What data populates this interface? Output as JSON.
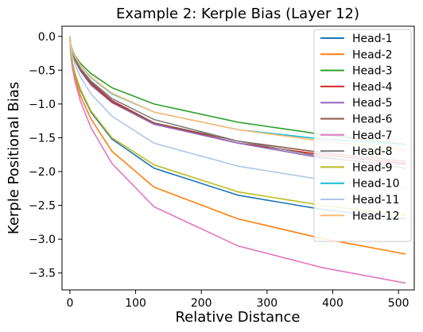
{
  "chart_data": {
    "type": "line",
    "title": "Example 2: Kerple Bias (Layer 12)",
    "xlabel": "Relative Distance",
    "ylabel": "Kerple Positional Bias",
    "xlim": [
      -12,
      524
    ],
    "ylim": [
      -3.75,
      0.15
    ],
    "xticks": [
      0,
      100,
      200,
      300,
      400,
      500
    ],
    "yticks": [
      0.0,
      -0.5,
      -1.0,
      -1.5,
      -2.0,
      -2.5,
      -3.0,
      -3.5
    ],
    "ytick_labels": [
      "0.0",
      "−0.5",
      "−1.0",
      "−1.5",
      "−2.0",
      "−2.5",
      "−3.0",
      "−3.5"
    ],
    "legend_position": "top-right",
    "grid": false,
    "x": [
      0,
      1,
      2,
      4,
      8,
      16,
      32,
      64,
      128,
      256,
      384,
      511
    ],
    "series": [
      {
        "name": "Head-1",
        "color": "#1f77b4",
        "values": [
          0,
          -0.2,
          -0.28,
          -0.4,
          -0.56,
          -0.8,
          -1.12,
          -1.52,
          -1.95,
          -2.35,
          -2.56,
          -2.7
        ]
      },
      {
        "name": "Head-2",
        "color": "#ff7f0e",
        "values": [
          0,
          -0.22,
          -0.31,
          -0.44,
          -0.62,
          -0.88,
          -1.22,
          -1.7,
          -2.23,
          -2.7,
          -2.99,
          -3.22
        ]
      },
      {
        "name": "Head-3",
        "color": "#2ca02c",
        "values": [
          0,
          -0.1,
          -0.14,
          -0.2,
          -0.29,
          -0.4,
          -0.55,
          -0.76,
          -1.0,
          -1.27,
          -1.45,
          -1.6
        ]
      },
      {
        "name": "Head-4",
        "color": "#d62728",
        "values": [
          0,
          -0.12,
          -0.17,
          -0.24,
          -0.34,
          -0.48,
          -0.68,
          -0.95,
          -1.28,
          -1.58,
          -1.75,
          -1.88
        ]
      },
      {
        "name": "Head-5",
        "color": "#9467bd",
        "values": [
          0,
          -0.13,
          -0.18,
          -0.26,
          -0.36,
          -0.51,
          -0.72,
          -0.98,
          -1.3,
          -1.58,
          -1.8,
          -1.9
        ]
      },
      {
        "name": "Head-6",
        "color": "#8c564b",
        "values": [
          0,
          -0.13,
          -0.18,
          -0.25,
          -0.35,
          -0.5,
          -0.7,
          -0.97,
          -1.28,
          -1.55,
          -1.72,
          -1.85
        ]
      },
      {
        "name": "Head-7",
        "color": "#e377c2",
        "values": [
          0,
          -0.24,
          -0.34,
          -0.48,
          -0.68,
          -0.96,
          -1.35,
          -1.88,
          -2.52,
          -3.1,
          -3.42,
          -3.65
        ]
      },
      {
        "name": "Head-8",
        "color": "#7f7f7f",
        "values": [
          0,
          -0.12,
          -0.17,
          -0.24,
          -0.33,
          -0.47,
          -0.66,
          -0.92,
          -1.23,
          -1.55,
          -1.78,
          -1.95
        ]
      },
      {
        "name": "Head-9",
        "color": "#bcbd22",
        "values": [
          0,
          -0.2,
          -0.28,
          -0.39,
          -0.55,
          -0.78,
          -1.1,
          -1.5,
          -1.9,
          -2.3,
          -2.5,
          -2.65
        ]
      },
      {
        "name": "Head-10",
        "color": "#17becf",
        "values": [
          0,
          -0.11,
          -0.15,
          -0.21,
          -0.3,
          -0.43,
          -0.61,
          -0.85,
          -1.12,
          -1.38,
          -1.52,
          -1.6
        ]
      },
      {
        "name": "Head-11",
        "color": "#aec7e8",
        "values": [
          0,
          -0.15,
          -0.21,
          -0.3,
          -0.42,
          -0.6,
          -0.85,
          -1.18,
          -1.58,
          -1.92,
          -2.12,
          -2.25
        ]
      },
      {
        "name": "Head-12",
        "color": "#ffbb78",
        "values": [
          0,
          -0.1,
          -0.15,
          -0.21,
          -0.3,
          -0.43,
          -0.6,
          -0.84,
          -1.12,
          -1.38,
          -1.55,
          -1.68
        ]
      }
    ]
  }
}
